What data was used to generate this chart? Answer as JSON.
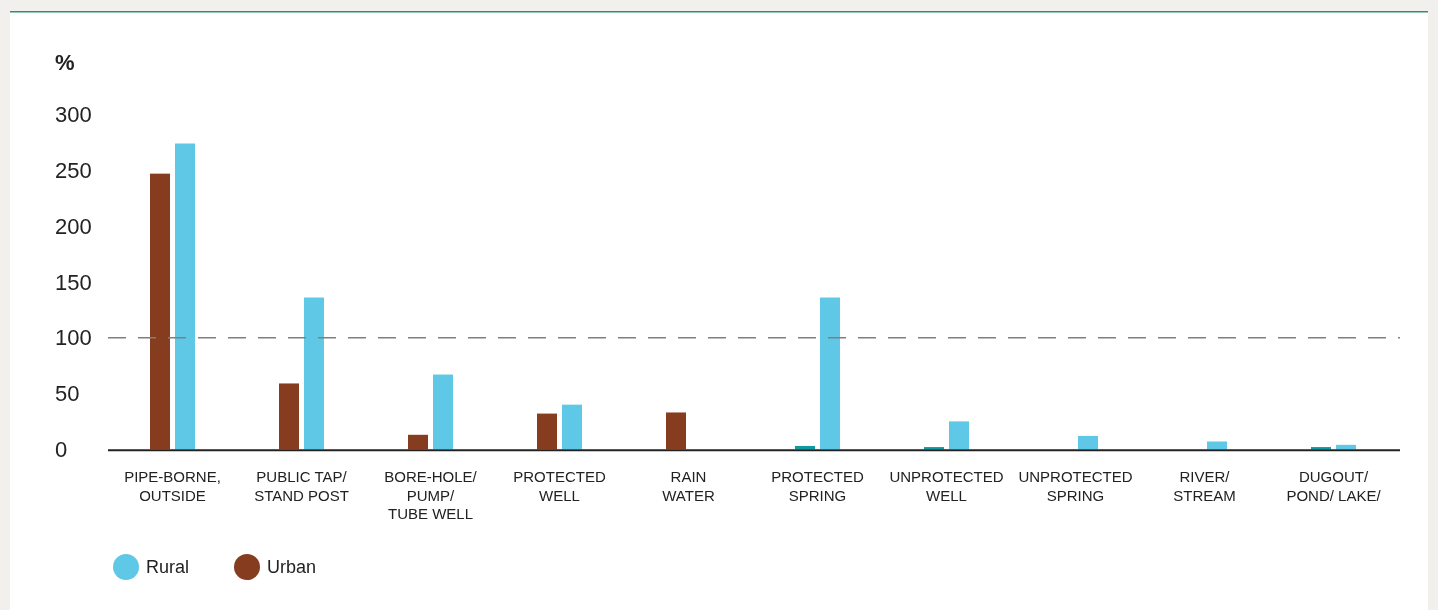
{
  "chart_data": {
    "type": "bar",
    "ylabel": "%",
    "categories": [
      "PIPE-BORNE,\nOUTSIDE",
      "PUBLIC TAP/\nSTAND POST",
      "BORE-HOLE/\nPUMP/\nTUBE WELL",
      "PROTECTED\nWELL",
      "RAIN\nWATER",
      "PROTECTED\nSPRING",
      "UNPROTECTED\nWELL",
      "UNPROTECTED\nSPRING",
      "RIVER/\nSTREAM",
      "DUGOUT/\nPOND/ LAKE/"
    ],
    "series": [
      {
        "name": "Rural",
        "color": "#5fc8e6",
        "values": [
          274,
          136,
          67,
          40,
          null,
          136,
          25,
          12,
          7,
          4
        ]
      },
      {
        "name": "Urban",
        "color": "#853c1f",
        "colors": [
          "#853c1f",
          "#853c1f",
          "#853c1f",
          "#853c1f",
          "#853c1f",
          "#0e9aa0",
          "#0e9aa0",
          null,
          null,
          "#0e9aa0"
        ],
        "values": [
          247,
          59,
          13,
          32,
          33,
          3,
          2,
          null,
          null,
          2
        ]
      }
    ],
    "ylim": [
      0,
      300
    ],
    "yticks": [
      0,
      50,
      100,
      150,
      200,
      250,
      300
    ],
    "grid": false,
    "legend": "bottom left",
    "ref_lines": [
      {
        "axis": "y",
        "value": 100,
        "line_style": "dashed",
        "color": "#7f7f7f"
      }
    ]
  }
}
